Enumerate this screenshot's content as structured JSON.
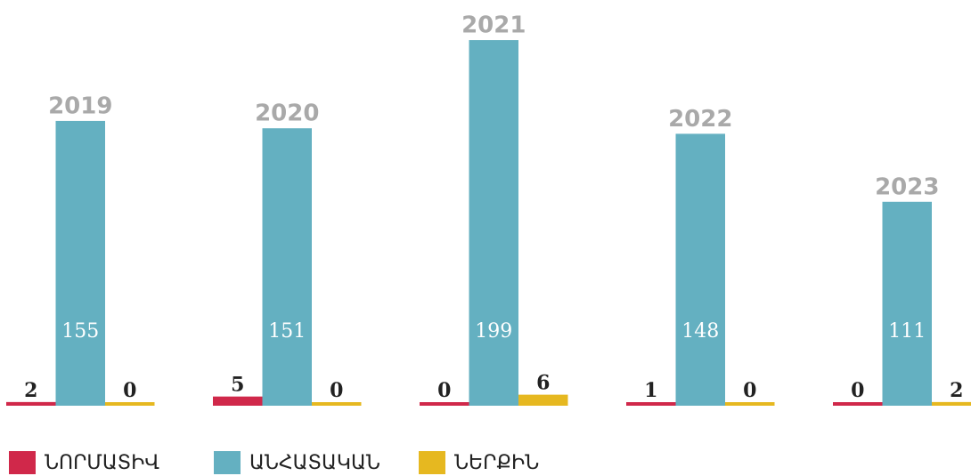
{
  "chart_data": {
    "type": "bar",
    "categories": [
      "2019",
      "2020",
      "2021",
      "2022",
      "2023"
    ],
    "series": [
      {
        "name": "ՆՈՐՄԱՏԻՎ",
        "color": "#d0284a",
        "values": [
          2,
          5,
          0,
          1,
          0
        ]
      },
      {
        "name": "ԱՆՀԱՏԱԿԱՆ",
        "color": "#64b0c1",
        "values": [
          155,
          151,
          199,
          148,
          111
        ]
      },
      {
        "name": "ՆԵՐՔԻՆ",
        "color": "#e6b820",
        "values": [
          0,
          0,
          6,
          0,
          2
        ]
      }
    ],
    "ylim": [
      0,
      200
    ]
  }
}
